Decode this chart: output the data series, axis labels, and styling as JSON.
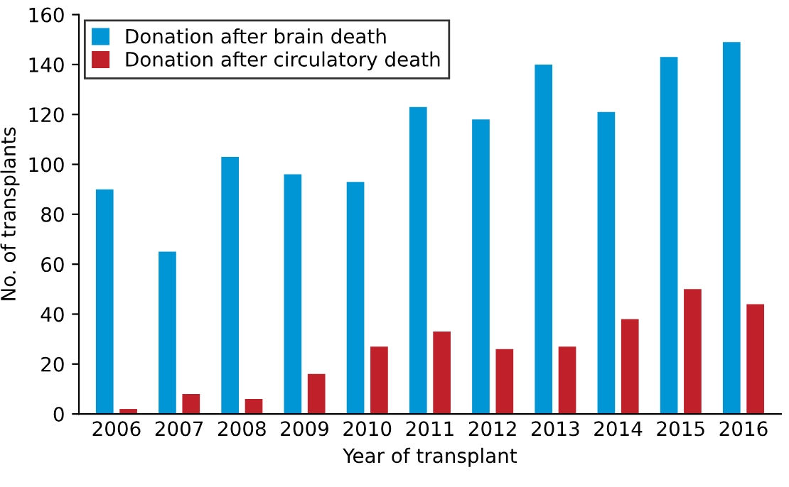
{
  "chart_data": {
    "type": "bar",
    "xlabel": "Year of transplant",
    "ylabel": "No. of transplants",
    "categories": [
      "2006",
      "2007",
      "2008",
      "2009",
      "2010",
      "2011",
      "2012",
      "2013",
      "2014",
      "2015",
      "2016"
    ],
    "series": [
      {
        "name": "Donation after brain death",
        "color": "#0096d6",
        "values": [
          90,
          65,
          103,
          96,
          93,
          123,
          118,
          140,
          121,
          143,
          149
        ]
      },
      {
        "name": "Donation after circulatory death",
        "color": "#c0202a",
        "values": [
          2,
          8,
          6,
          16,
          27,
          33,
          26,
          27,
          38,
          50,
          44
        ]
      }
    ],
    "ylim": [
      0,
      160
    ],
    "yticks": [
      0,
      20,
      40,
      60,
      80,
      100,
      120,
      140,
      160
    ],
    "grid": false,
    "legend": "top left"
  }
}
